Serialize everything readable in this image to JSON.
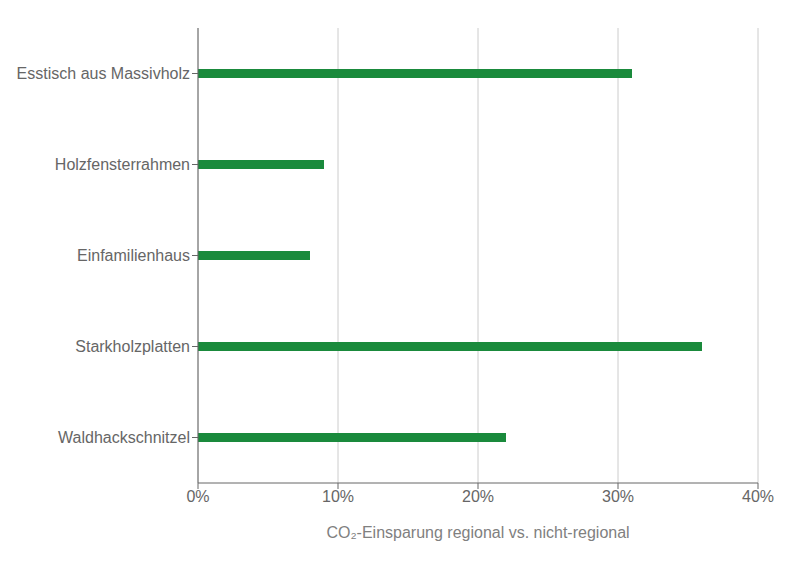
{
  "chart_data": {
    "type": "bar",
    "orientation": "horizontal",
    "categories": [
      "Waldhackschnitzel",
      "Starkholzplatten",
      "Einfamilienhaus",
      "Holzfensterrahmen",
      "Esstisch aus Massivholz"
    ],
    "values": [
      22,
      36,
      8,
      9,
      31
    ],
    "color": "#1a8a3c",
    "xlabel": "CO₂-Einsparung regional vs. nicht-regional",
    "xlim": [
      0,
      40
    ],
    "xticks": [
      {
        "value": 0,
        "label": "0%"
      },
      {
        "value": 10,
        "label": "10%"
      },
      {
        "value": 20,
        "label": "20%"
      },
      {
        "value": 30,
        "label": "30%"
      },
      {
        "value": 40,
        "label": "40%"
      }
    ],
    "grid": true
  }
}
